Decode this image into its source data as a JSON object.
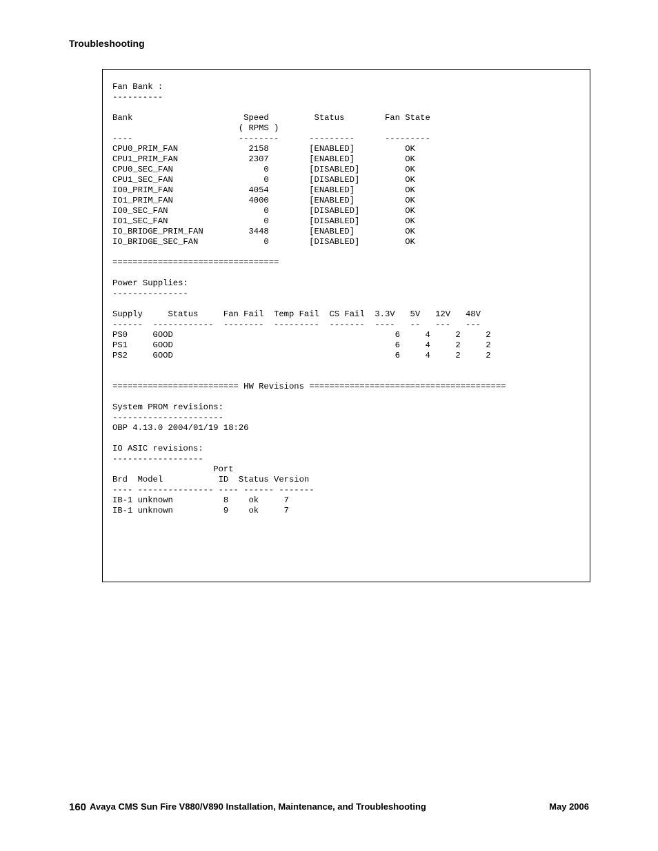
{
  "header": {
    "section_title": "Troubleshooting"
  },
  "terminal": {
    "fan_section_title": "Fan Bank :",
    "fan_section_underline": "----------",
    "fan_header_line1": "Bank                      Speed         Status        Fan State",
    "fan_header_line2": "                         ( RPMS )",
    "fan_header_rule": "----                     --------      ---------      ---------",
    "fan_rows": [
      "CPU0_PRIM_FAN              2158        [ENABLED]          OK",
      "CPU1_PRIM_FAN              2307        [ENABLED]          OK",
      "CPU0_SEC_FAN                  0        [DISABLED]         OK",
      "CPU1_SEC_FAN                  0        [DISABLED]         OK",
      "IO0_PRIM_FAN               4054        [ENABLED]          OK",
      "IO1_PRIM_FAN               4000        [ENABLED]          OK",
      "IO0_SEC_FAN                   0        [DISABLED]         OK",
      "IO1_SEC_FAN                   0        [DISABLED]         OK",
      "IO_BRIDGE_PRIM_FAN         3448        [ENABLED]          OK",
      "IO_BRIDGE_SEC_FAN             0        [DISABLED]         OK"
    ],
    "divider1": "=================================",
    "ps_title": "Power Supplies:",
    "ps_underline": "---------------",
    "ps_header": "Supply     Status     Fan Fail  Temp Fail  CS Fail  3.3V   5V   12V   48V",
    "ps_rule": "------  ------------  --------  ---------  -------  ----   --   ---   ---",
    "ps_rows": [
      "PS0     GOOD                                            6     4     2     2",
      "PS1     GOOD                                            6     4     2     2",
      "PS2     GOOD                                            6     4     2     2"
    ],
    "hw_divider": "========================= HW Revisions =======================================",
    "prom_title": "System PROM revisions:",
    "prom_underline": "----------------------",
    "prom_line": "OBP 4.13.0 2004/01/19 18:26",
    "asic_title": "IO ASIC revisions:",
    "asic_underline": "------------------",
    "asic_header1": "                    Port",
    "asic_header2": "Brd  Model           ID  Status Version",
    "asic_rule": "---- --------------- ---- ------ -------",
    "asic_rows": [
      "IB-1 unknown          8    ok     7",
      "IB-1 unknown          9    ok     7"
    ]
  },
  "footer": {
    "page_number": "160",
    "title": "Avaya CMS Sun Fire V880/V890 Installation, Maintenance, and Troubleshooting",
    "date": "May 2006"
  }
}
